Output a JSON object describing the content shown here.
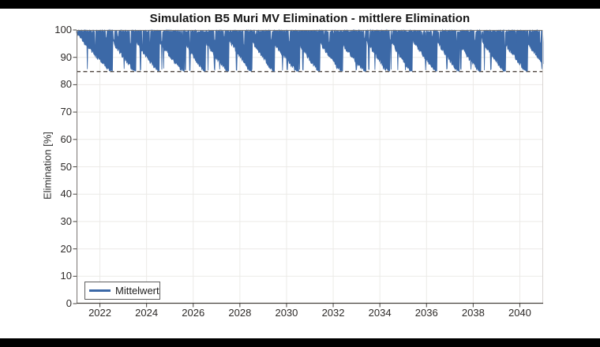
{
  "frame": {
    "letterbox_color": "#000000",
    "canvas_color": "#ffffff"
  },
  "style": {
    "plot_bg": "#ffffff",
    "grid_color": "#eceae7",
    "border_color": "#7a7672",
    "bottom_axis_color": "#45413d",
    "tick_color": "#45413d",
    "tick_text_color": "#2d2a28",
    "title_color": "#161616"
  },
  "chart_data": {
    "type": "line",
    "title": "Simulation B5 Muri MV Elimination - mittlere Elimination",
    "xlabel": "",
    "ylabel": "Elimination [%]",
    "xlim": [
      2021,
      2041
    ],
    "ylim": [
      0,
      100
    ],
    "xticks": [
      2022,
      2024,
      2026,
      2028,
      2030,
      2032,
      2034,
      2036,
      2038,
      2040
    ],
    "yticks": [
      0,
      10,
      20,
      30,
      40,
      50,
      60,
      70,
      80,
      90,
      100
    ],
    "grid": true,
    "legend": {
      "position": "bottom-left",
      "entries": [
        {
          "label": "Mittelwert",
          "color": "#3c69a7"
        }
      ]
    },
    "threshold_line": {
      "value": 84.8,
      "style": "dashed",
      "color": "#3e342d"
    },
    "series": [
      {
        "name": "Mittelwert",
        "color": "#3c69a7",
        "fill": true,
        "band_upper": 100,
        "band_lower_min": 85,
        "pattern": {
          "type": "annual-sawtooth-band",
          "first_cycle_start": 2021.0,
          "first_cycle_end": 2022.55,
          "first_cycle_start_value": 100,
          "cycle_reset_value_min": 95.5,
          "cycle_reset_value_max": 98.0,
          "cycle_length_min_years": 0.88,
          "cycle_length_max_years": 1.1,
          "descent_exponent": 0.9,
          "samples_per_year": 52,
          "seed": 11
        }
      }
    ]
  }
}
